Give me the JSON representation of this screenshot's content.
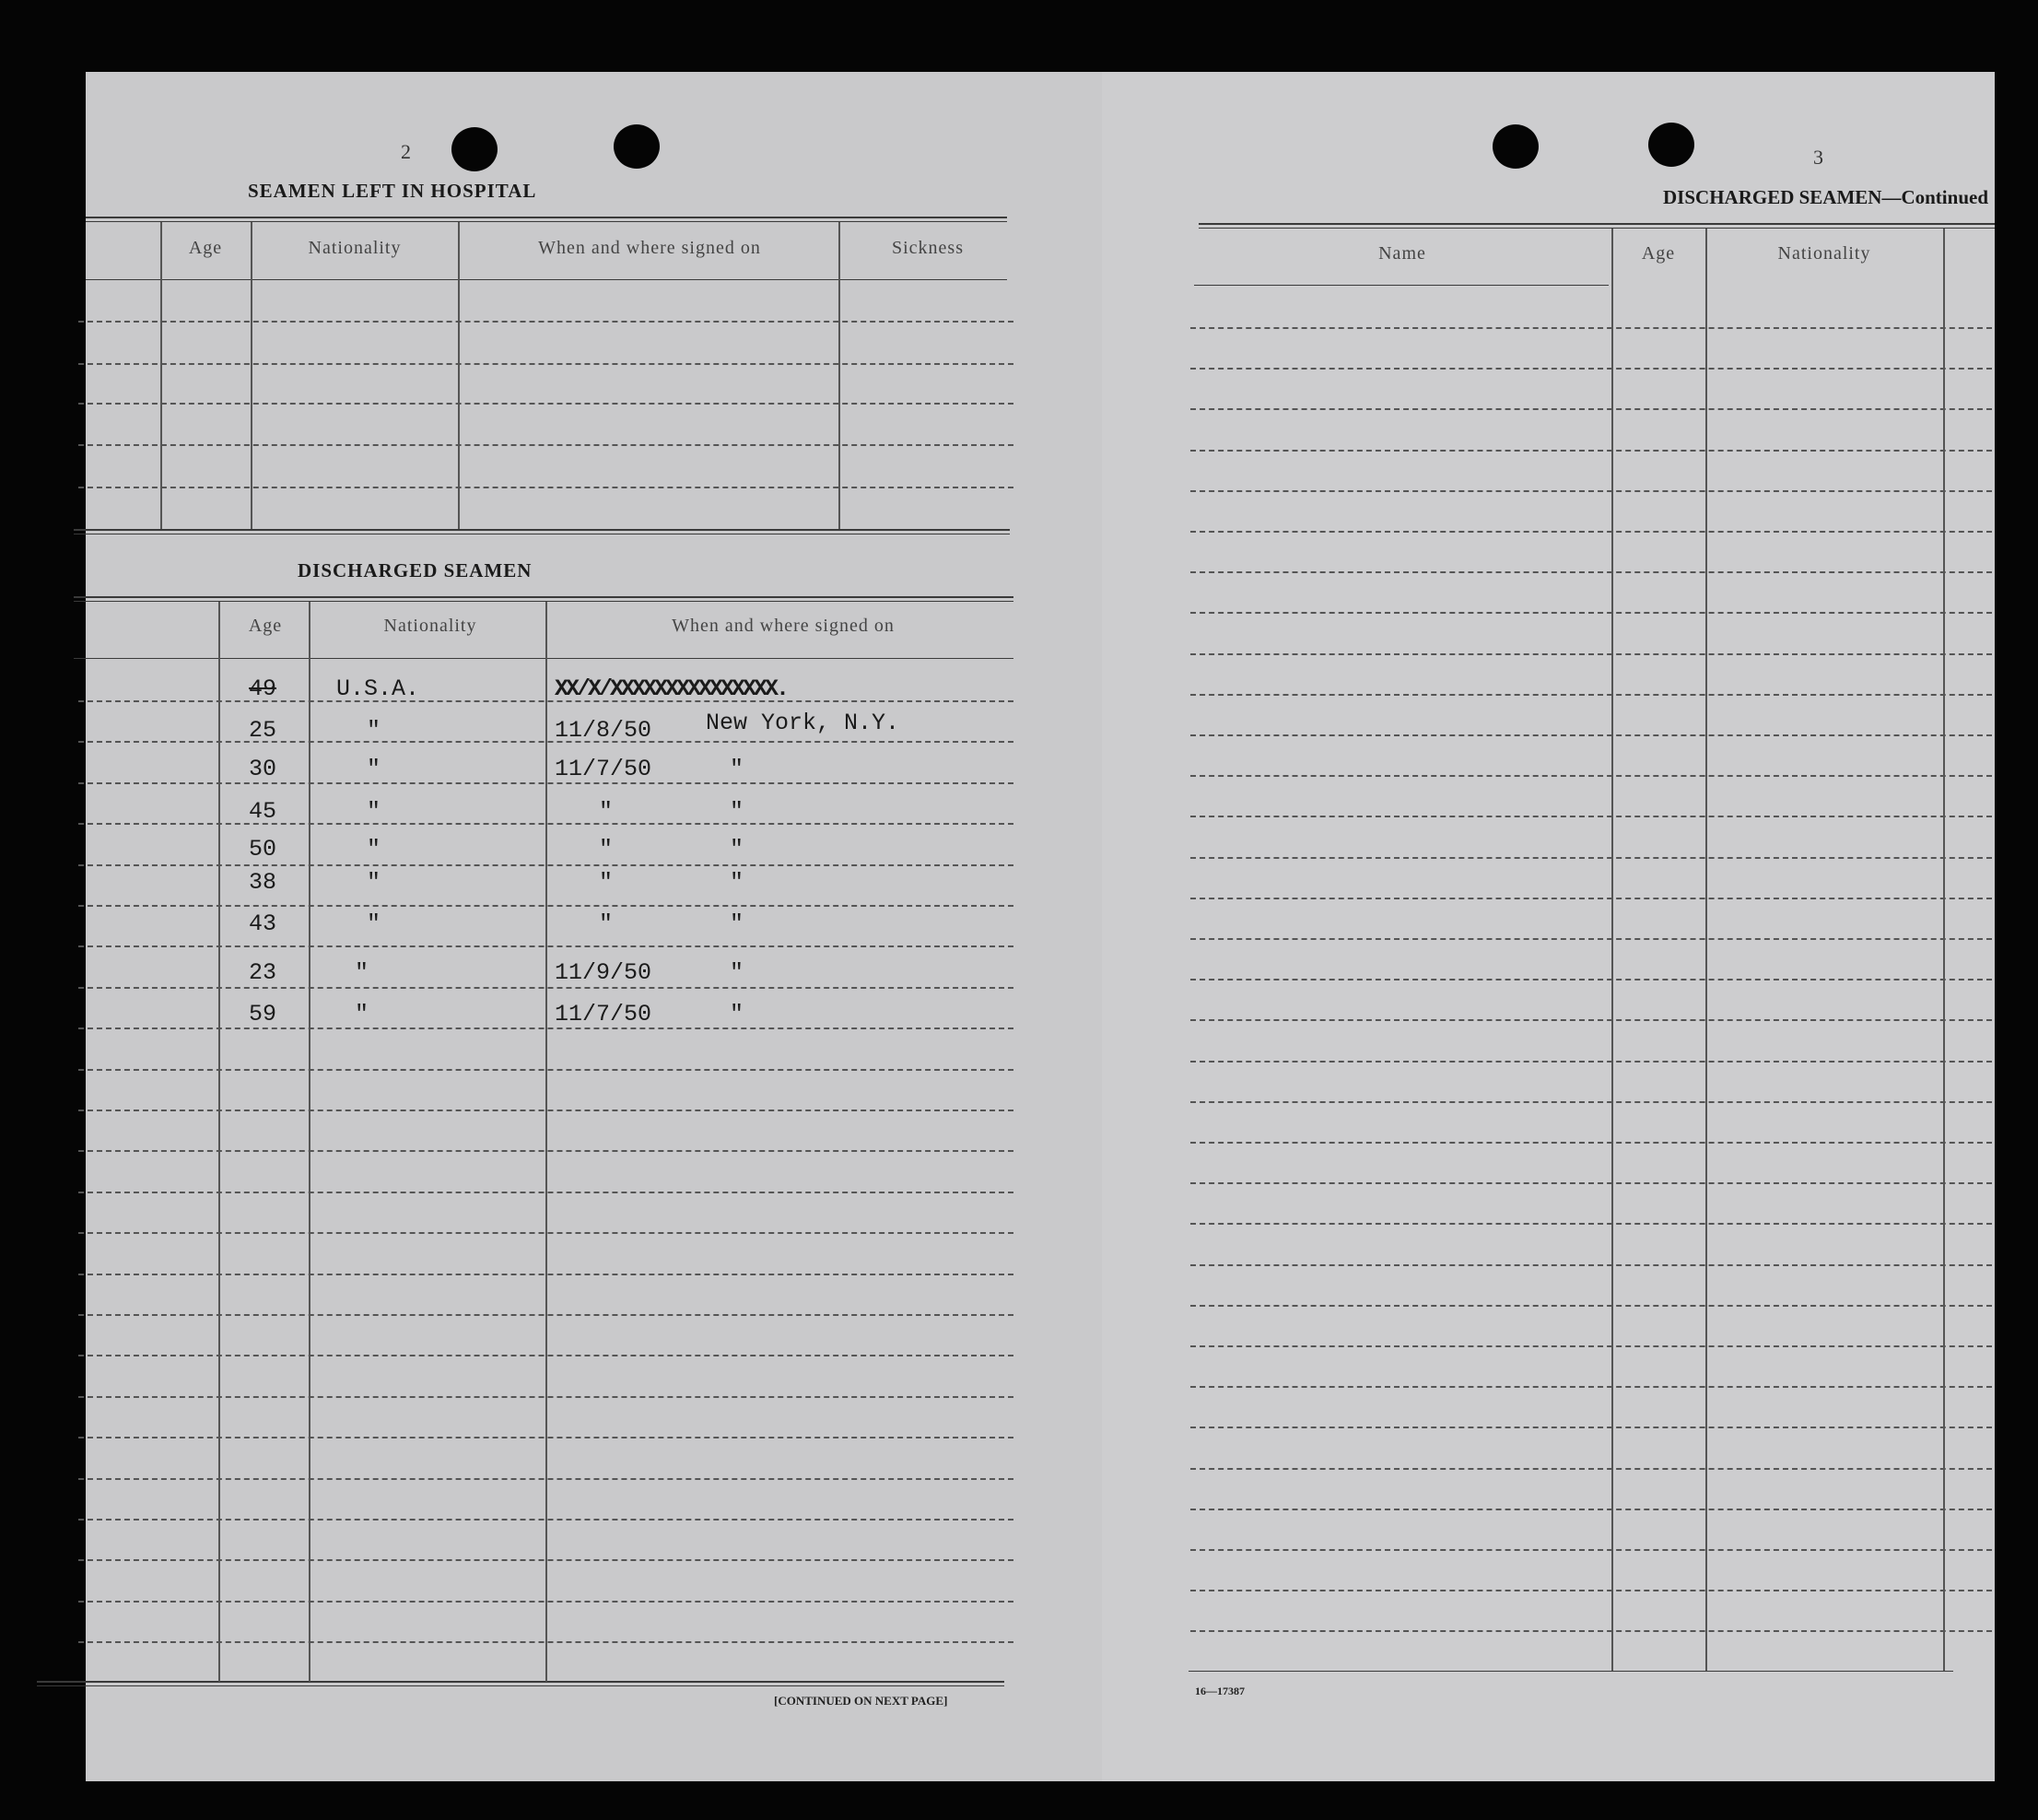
{
  "left_page": {
    "page_number": "2",
    "hospital_section": {
      "title": "SEAMEN LEFT IN HOSPITAL",
      "columns": [
        "Age",
        "Nationality",
        "When and where signed on",
        "Sickness"
      ]
    },
    "discharged_section": {
      "title": "DISCHARGED SEAMEN",
      "columns": [
        "Age",
        "Nationality",
        "When and where signed on"
      ],
      "rows": [
        {
          "age": "49",
          "nationality": "U.S.A.",
          "date": "",
          "place": "",
          "struck_entry": "XX/X/XXXXXXXXXXXXXXX."
        },
        {
          "age": "25",
          "nationality": "\"",
          "date": "11/8/50",
          "place": "New York, N.Y."
        },
        {
          "age": "30",
          "nationality": "\"",
          "date": "11/7/50",
          "place": "\""
        },
        {
          "age": "45",
          "nationality": "\"",
          "date": "\"",
          "place": "\""
        },
        {
          "age": "50",
          "nationality": "\"",
          "date": "\"",
          "place": "\""
        },
        {
          "age": "38",
          "nationality": "\"",
          "date": "\"",
          "place": "\""
        },
        {
          "age": "43",
          "nationality": "\"",
          "date": "\"",
          "place": "\""
        },
        {
          "age": "23",
          "nationality": "\"",
          "date": "11/9/50",
          "place": "\""
        },
        {
          "age": "59",
          "nationality": "\"",
          "date": "11/7/50",
          "place": "\""
        }
      ]
    },
    "footer": "[CONTINUED ON NEXT PAGE]"
  },
  "right_page": {
    "page_number": "3",
    "title": "DISCHARGED SEAMEN—Continued",
    "columns": [
      "Name",
      "Age",
      "Nationality"
    ],
    "form_number": "16—17387"
  }
}
